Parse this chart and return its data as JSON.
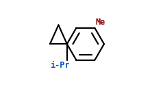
{
  "background_color": "#ffffff",
  "line_color": "#000000",
  "label_color_iPr": "#0055cc",
  "label_color_Me": "#880000",
  "label_iPr": "i-Pr",
  "label_Me": "Me",
  "line_width": 1.6,
  "figsize": [
    2.19,
    1.49
  ],
  "dpi": 100,
  "xlim": [
    0.0,
    1.0
  ],
  "ylim": [
    0.0,
    1.0
  ]
}
